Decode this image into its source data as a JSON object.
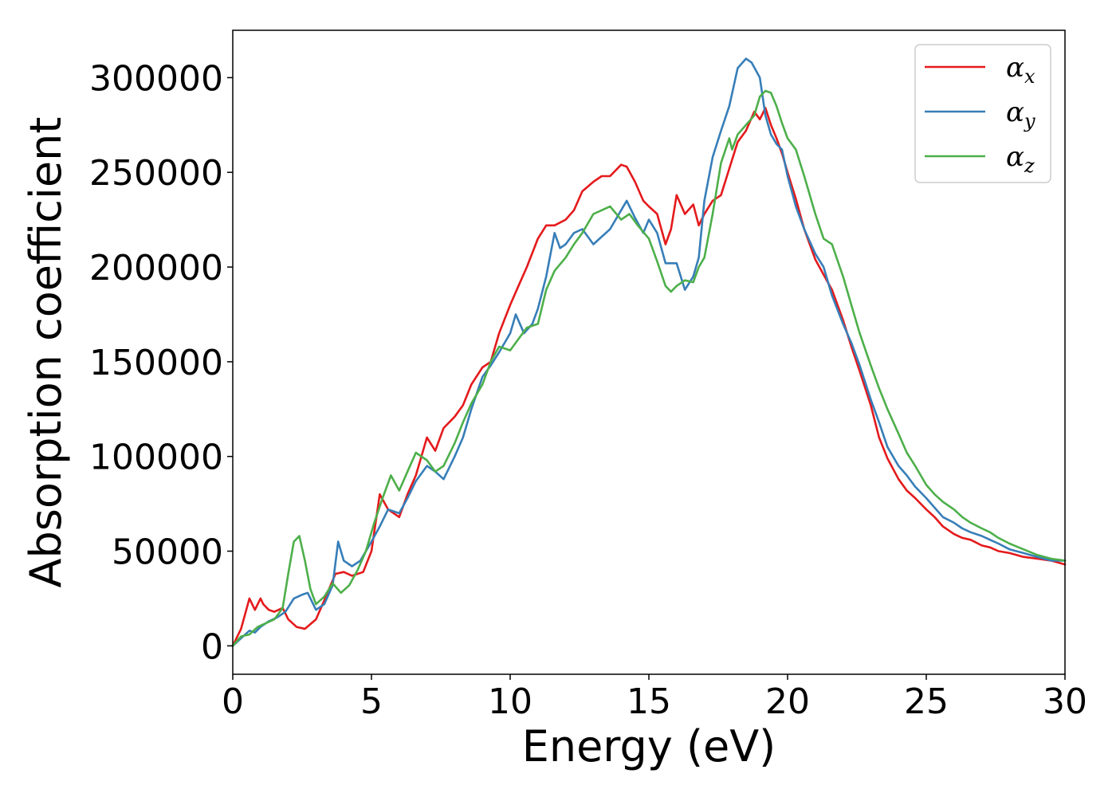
{
  "chart_data": {
    "type": "line",
    "title": "",
    "xlabel": "Energy (eV)",
    "ylabel": "Absorption coefficient",
    "xlim": [
      0,
      30
    ],
    "ylim": [
      -15000,
      325000
    ],
    "x_ticks": [
      0,
      5,
      10,
      15,
      20,
      25,
      30
    ],
    "y_ticks": [
      0,
      50000,
      100000,
      150000,
      200000,
      250000,
      300000
    ],
    "x_tick_labels": [
      "0",
      "5",
      "10",
      "15",
      "20",
      "25",
      "30"
    ],
    "y_tick_labels": [
      "0",
      "50000",
      "100000",
      "150000",
      "200000",
      "250000",
      "300000"
    ],
    "grid": false,
    "legend_position": "top-right",
    "series": [
      {
        "name": "αx",
        "symbol": "α",
        "subscript": "x",
        "color": "#e41a1c",
        "x": [
          0,
          0.3,
          0.6,
          0.8,
          1.0,
          1.1,
          1.3,
          1.5,
          1.8,
          2.0,
          2.3,
          2.6,
          3.0,
          3.3,
          3.7,
          4.0,
          4.3,
          4.7,
          5.0,
          5.3,
          5.6,
          6.0,
          6.3,
          6.6,
          7.0,
          7.3,
          7.6,
          8.0,
          8.3,
          8.6,
          9.0,
          9.3,
          9.6,
          10.0,
          10.3,
          10.6,
          11.0,
          11.3,
          11.6,
          12.0,
          12.3,
          12.6,
          13.0,
          13.3,
          13.6,
          14.0,
          14.2,
          14.5,
          14.8,
          15.0,
          15.3,
          15.6,
          15.8,
          16.0,
          16.3,
          16.6,
          16.8,
          17.0,
          17.3,
          17.6,
          17.9,
          18.2,
          18.5,
          18.8,
          19.0,
          19.2,
          19.4,
          19.6,
          19.8,
          20.0,
          20.3,
          20.6,
          21.0,
          21.3,
          21.6,
          22.0,
          22.3,
          22.6,
          23.0,
          23.3,
          23.6,
          24.0,
          24.3,
          24.6,
          25.0,
          25.3,
          25.6,
          26.0,
          26.3,
          26.6,
          27.0,
          27.3,
          27.6,
          28.0,
          28.5,
          29.0,
          29.5,
          30.0
        ],
        "values": [
          0,
          9000,
          25000,
          19000,
          25000,
          22000,
          19000,
          18000,
          20000,
          14000,
          10000,
          9000,
          14000,
          24000,
          38000,
          39000,
          37000,
          39000,
          50000,
          80000,
          72000,
          68000,
          80000,
          90000,
          110000,
          103000,
          115000,
          121000,
          127000,
          138000,
          147000,
          150000,
          165000,
          180000,
          190000,
          200000,
          215000,
          222000,
          222000,
          225000,
          230000,
          240000,
          245000,
          248000,
          248000,
          254000,
          253000,
          245000,
          235000,
          232000,
          228000,
          212000,
          220000,
          238000,
          228000,
          233000,
          222000,
          228000,
          235000,
          238000,
          252000,
          266000,
          272000,
          282000,
          278000,
          284000,
          275000,
          268000,
          260000,
          250000,
          236000,
          220000,
          204000,
          196000,
          188000,
          172000,
          158000,
          145000,
          127000,
          110000,
          99000,
          88000,
          82000,
          78000,
          72000,
          68000,
          63000,
          59000,
          57000,
          56000,
          53000,
          52000,
          50000,
          49000,
          47000,
          46000,
          45000,
          43000
        ]
      },
      {
        "name": "αy",
        "symbol": "α",
        "subscript": "y",
        "color": "#377eb8",
        "x": [
          0,
          0.3,
          0.6,
          0.8,
          1.0,
          1.3,
          1.6,
          1.9,
          2.2,
          2.5,
          2.7,
          3.0,
          3.3,
          3.6,
          3.8,
          4.0,
          4.3,
          4.6,
          5.0,
          5.3,
          5.6,
          6.0,
          6.3,
          6.6,
          7.0,
          7.3,
          7.6,
          8.0,
          8.3,
          8.6,
          9.0,
          9.3,
          9.6,
          10.0,
          10.2,
          10.5,
          10.8,
          11.0,
          11.3,
          11.6,
          11.8,
          12.0,
          12.3,
          12.6,
          13.0,
          13.3,
          13.6,
          14.0,
          14.2,
          14.5,
          14.8,
          15.0,
          15.3,
          15.6,
          16.0,
          16.3,
          16.6,
          16.8,
          17.0,
          17.3,
          17.6,
          17.9,
          18.2,
          18.5,
          18.7,
          19.0,
          19.2,
          19.4,
          19.6,
          19.8,
          20.0,
          20.3,
          20.6,
          21.0,
          21.3,
          21.6,
          22.0,
          22.3,
          22.6,
          23.0,
          23.3,
          23.6,
          24.0,
          24.3,
          24.6,
          25.0,
          25.3,
          25.6,
          26.0,
          26.3,
          26.6,
          27.0,
          27.3,
          27.6,
          28.0,
          28.5,
          29.0,
          29.5,
          30.0
        ],
        "values": [
          0,
          4000,
          8000,
          7000,
          10000,
          13000,
          15000,
          18000,
          25000,
          27000,
          28000,
          19000,
          22000,
          32000,
          55000,
          45000,
          42000,
          45000,
          55000,
          63000,
          72000,
          70000,
          78000,
          87000,
          95000,
          92000,
          88000,
          100000,
          110000,
          125000,
          142000,
          148000,
          155000,
          165000,
          175000,
          165000,
          170000,
          178000,
          195000,
          218000,
          210000,
          212000,
          218000,
          220000,
          212000,
          216000,
          220000,
          230000,
          235000,
          226000,
          218000,
          225000,
          218000,
          202000,
          202000,
          188000,
          195000,
          205000,
          235000,
          258000,
          272000,
          285000,
          305000,
          310000,
          308000,
          300000,
          280000,
          270000,
          265000,
          262000,
          248000,
          232000,
          220000,
          207000,
          200000,
          185000,
          170000,
          160000,
          148000,
          130000,
          118000,
          105000,
          95000,
          90000,
          84000,
          78000,
          73000,
          68000,
          65000,
          62000,
          60000,
          58000,
          56000,
          54000,
          51000,
          49000,
          47000,
          45000,
          45000
        ]
      },
      {
        "name": "αz",
        "symbol": "α",
        "subscript": "z",
        "color": "#4daf4a",
        "x": [
          0,
          0.3,
          0.6,
          0.9,
          1.2,
          1.5,
          1.8,
          2.0,
          2.2,
          2.4,
          2.6,
          2.8,
          3.0,
          3.3,
          3.6,
          3.9,
          4.2,
          4.5,
          4.8,
          5.1,
          5.4,
          5.7,
          6.0,
          6.3,
          6.6,
          7.0,
          7.3,
          7.6,
          8.0,
          8.3,
          8.6,
          9.0,
          9.3,
          9.6,
          10.0,
          10.3,
          10.6,
          11.0,
          11.3,
          11.6,
          12.0,
          12.3,
          12.6,
          13.0,
          13.3,
          13.6,
          14.0,
          14.3,
          14.6,
          15.0,
          15.3,
          15.6,
          15.8,
          16.0,
          16.3,
          16.6,
          16.8,
          17.0,
          17.3,
          17.6,
          17.9,
          18.0,
          18.2,
          18.5,
          18.8,
          19.0,
          19.2,
          19.4,
          19.6,
          19.8,
          20.0,
          20.3,
          20.6,
          21.0,
          21.3,
          21.6,
          22.0,
          22.3,
          22.6,
          23.0,
          23.3,
          23.6,
          24.0,
          24.3,
          24.6,
          25.0,
          25.3,
          25.6,
          26.0,
          26.3,
          26.6,
          27.0,
          27.3,
          27.6,
          28.0,
          28.5,
          29.0,
          29.5,
          30.0
        ],
        "values": [
          0,
          5000,
          6000,
          10000,
          12000,
          14000,
          20000,
          38000,
          55000,
          58000,
          45000,
          30000,
          22000,
          26000,
          33000,
          28000,
          32000,
          40000,
          50000,
          65000,
          78000,
          90000,
          82000,
          92000,
          102000,
          98000,
          92000,
          95000,
          107000,
          118000,
          128000,
          138000,
          150000,
          158000,
          156000,
          162000,
          168000,
          170000,
          188000,
          198000,
          205000,
          212000,
          218000,
          228000,
          230000,
          232000,
          225000,
          228000,
          222000,
          215000,
          203000,
          190000,
          187000,
          190000,
          193000,
          192000,
          200000,
          205000,
          228000,
          255000,
          268000,
          262000,
          270000,
          275000,
          280000,
          290000,
          293000,
          292000,
          285000,
          276000,
          268000,
          262000,
          248000,
          228000,
          215000,
          212000,
          195000,
          180000,
          165000,
          148000,
          136000,
          125000,
          112000,
          102000,
          95000,
          85000,
          80000,
          76000,
          72000,
          68000,
          65000,
          62000,
          60000,
          57000,
          54000,
          51000,
          48000,
          46000,
          45000
        ]
      }
    ]
  }
}
